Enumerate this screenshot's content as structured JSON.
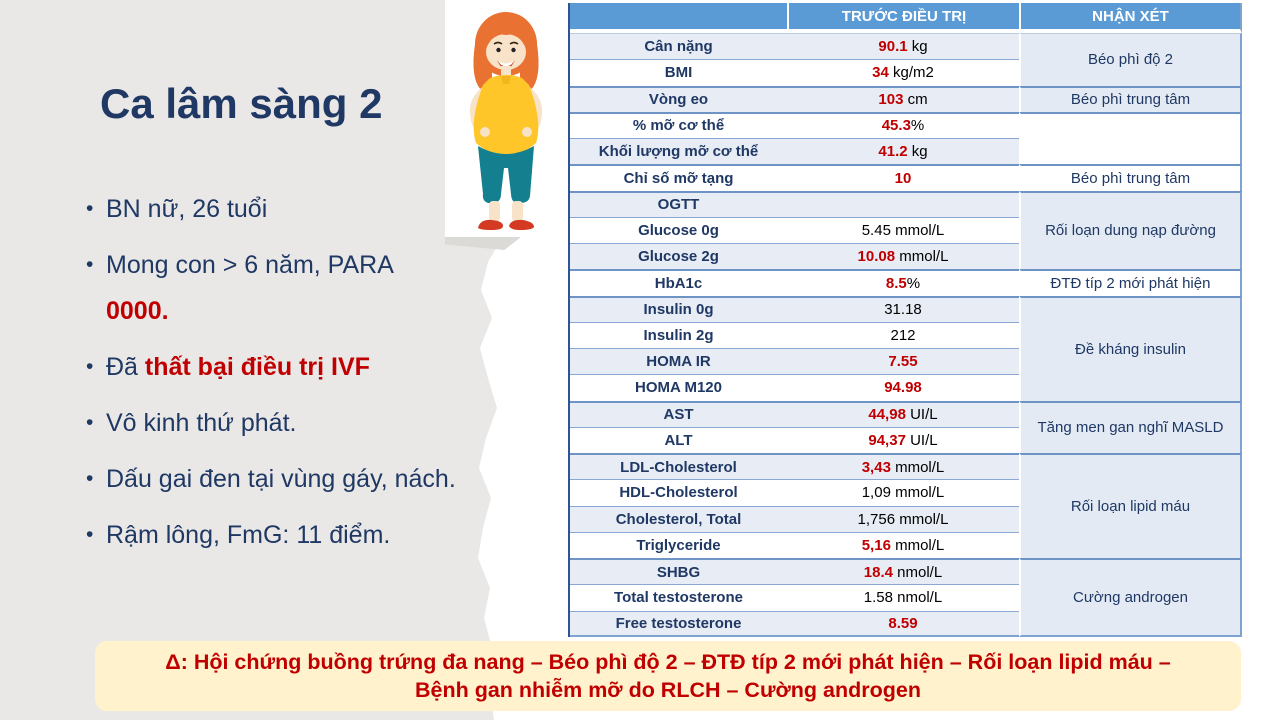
{
  "colors": {
    "navy": "#1F3864",
    "red": "#C00000",
    "header_blue": "#5B9BD5",
    "shaded_row": "#E7ECF5",
    "gray_panel": "#E9E8E6",
    "banner_bg": "#FFF2CC"
  },
  "left_panel": {
    "title": "Ca lâm sàng 2",
    "bullets": [
      {
        "segments": [
          {
            "text": "BN nữ, 26 tuổi",
            "style": "normal"
          }
        ]
      },
      {
        "segments": [
          {
            "text": "Mong con > 6 năm, PARA ",
            "style": "normal"
          },
          {
            "text": "0000.",
            "style": "red-bold",
            "breakBefore": true
          }
        ]
      },
      {
        "segments": [
          {
            "text": "Đã ",
            "style": "normal"
          },
          {
            "text": "thất bại điều trị IVF",
            "style": "red-bold"
          }
        ]
      },
      {
        "segments": [
          {
            "text": "Vô kinh thứ phát.",
            "style": "normal"
          }
        ]
      },
      {
        "segments": [
          {
            "text": "Dấu gai đen tại vùng gáy, nách.",
            "style": "normal"
          }
        ]
      },
      {
        "segments": [
          {
            "text": "Rậm lông, FmG: 11 điểm.",
            "style": "normal"
          }
        ]
      }
    ]
  },
  "illustration": {
    "name": "overweight-woman-cartoon",
    "hair": "#E97132",
    "skin": "#F8E3C8",
    "shirt": "#FFC629",
    "pants": "#14808F",
    "shoes": "#D43A22"
  },
  "table": {
    "header": {
      "col_param": "",
      "col_value": "TRƯỚC ĐIỀU TRỊ",
      "col_comment": "NHẬN XÉT"
    },
    "rows": [
      {
        "label": "Cân nặng",
        "value": "90.1",
        "unit": " kg",
        "red": true
      },
      {
        "label": "BMI",
        "value": "34",
        "unit": " kg/m2",
        "red": true
      },
      {
        "label": "Vòng eo",
        "value": "103",
        "unit": " cm",
        "red": true
      },
      {
        "label": "% mỡ cơ thể",
        "value": "45.3",
        "unit": "%",
        "red": true
      },
      {
        "label": "Khối lượng mỡ cơ thể",
        "value": "41.2",
        "unit": " kg",
        "red": true
      },
      {
        "label": "Chỉ số mỡ tạng",
        "value": "10",
        "unit": "",
        "red": true
      },
      {
        "label": "OGTT",
        "value": "",
        "unit": "",
        "red": false
      },
      {
        "label": "Glucose 0g",
        "value": "5.45",
        "unit": " mmol/L",
        "red": false
      },
      {
        "label": "Glucose 2g",
        "value": "10.08",
        "unit": " mmol/L",
        "red": true
      },
      {
        "label": "HbA1c",
        "value": "8.5",
        "unit": "%",
        "red": true
      },
      {
        "label": "Insulin 0g",
        "value": "31.18",
        "unit": "",
        "red": false
      },
      {
        "label": "Insulin 2g",
        "value": "212",
        "unit": "",
        "red": false
      },
      {
        "label": "HOMA IR",
        "value": "7.55",
        "unit": "",
        "red": true
      },
      {
        "label": "HOMA M120",
        "value": "94.98",
        "unit": "",
        "red": true
      },
      {
        "label": "AST",
        "value": "44,98",
        "unit": " UI/L",
        "red": true
      },
      {
        "label": "ALT",
        "value": "94,37",
        "unit": " UI/L",
        "red": true
      },
      {
        "label": "LDL-Cholesterol",
        "value": "3,43",
        "unit": " mmol/L",
        "red": true
      },
      {
        "label": "HDL-Cholesterol",
        "value": "1,09",
        "unit": " mmol/L",
        "red": false
      },
      {
        "label": "Cholesterol, Total",
        "value": "1,756",
        "unit": " mmol/L",
        "red": false
      },
      {
        "label": "Triglyceride",
        "value": "5,16",
        "unit": " mmol/L",
        "red": true
      },
      {
        "label": "SHBG",
        "value": "18.4",
        "unit": " nmol/L",
        "red": true
      },
      {
        "label": "Total testosterone",
        "value": "1.58",
        "unit": " nmol/L",
        "red": false
      },
      {
        "label": "Free testosterone",
        "value": "8.59",
        "unit": "",
        "red": true
      }
    ],
    "comments": [
      {
        "text": "Béo phì độ 2",
        "row": 0,
        "span": 2,
        "shaded": true
      },
      {
        "text": "Béo phì trung tâm",
        "row": 2,
        "span": 1,
        "shaded": true
      },
      {
        "text": "",
        "row": 3,
        "span": 2,
        "shaded": false
      },
      {
        "text": "Béo phì trung tâm",
        "row": 5,
        "span": 1,
        "shaded": false
      },
      {
        "text": "Rối loạn dung nạp đường",
        "row": 6,
        "span": 3,
        "shaded": true
      },
      {
        "text": "ĐTĐ típ 2 mới phát hiện",
        "row": 9,
        "span": 1,
        "shaded": false
      },
      {
        "text": "Đề kháng insulin",
        "row": 10,
        "span": 4,
        "shaded": true
      },
      {
        "text": "Tăng men gan nghĩ MASLD",
        "row": 14,
        "span": 2,
        "shaded": true
      },
      {
        "text": "Rối loạn lipid máu",
        "row": 16,
        "span": 4,
        "shaded": true
      },
      {
        "text": "Cường androgen",
        "row": 20,
        "span": 3,
        "shaded": true
      }
    ]
  },
  "banner": {
    "lines": [
      "Δ: Hội chứng buồng trứng đa nang – Béo phì độ 2 – ĐTĐ típ 2 mới phát hiện – Rối loạn lipid máu –",
      "Bệnh gan nhiễm mỡ do RLCH – Cường androgen"
    ]
  }
}
